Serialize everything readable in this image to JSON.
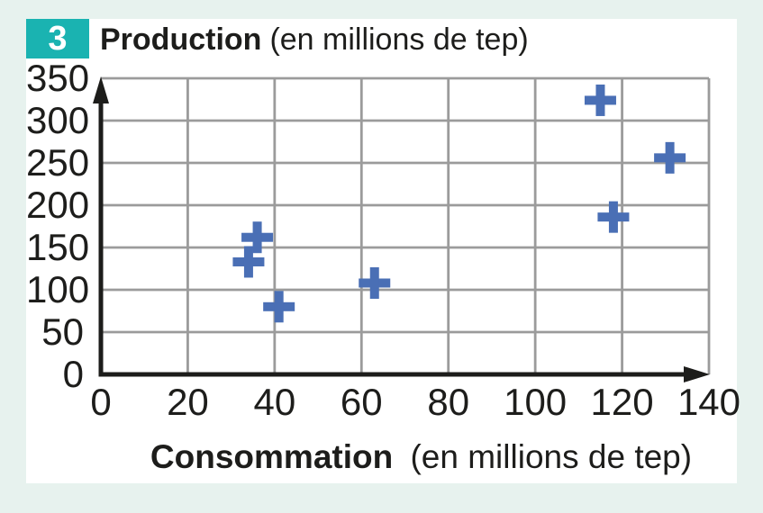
{
  "header": {
    "badge": "3",
    "title_bold": "Production",
    "title_rest": "(en millions de tep)"
  },
  "x_axis": {
    "label_bold": "Consommation",
    "label_rest": "(en millions de tep)"
  },
  "colors": {
    "accent_teal": "#1ab3b1",
    "marker_blue": "#4a6fb5",
    "grid_gray": "#9b9b9b",
    "axis_black": "#1d1d1b",
    "page_background": "#e7f2ee",
    "card_background": "#ffffff"
  },
  "chart_data": {
    "type": "scatter",
    "title": "Production (en millions de tep)",
    "xlabel": "Consommation (en millions de tep)",
    "ylabel": "Production (en millions de tep)",
    "xlim": [
      0,
      140
    ],
    "ylim": [
      0,
      350
    ],
    "x_ticks": [
      0,
      20,
      40,
      60,
      80,
      100,
      120,
      140
    ],
    "y_ticks": [
      0,
      50,
      100,
      150,
      200,
      250,
      300,
      350
    ],
    "grid": true,
    "legend": false,
    "marker": "plus",
    "points": [
      {
        "x": 34,
        "y": 133
      },
      {
        "x": 36,
        "y": 162
      },
      {
        "x": 41,
        "y": 80
      },
      {
        "x": 63,
        "y": 108
      },
      {
        "x": 115,
        "y": 324
      },
      {
        "x": 118,
        "y": 186
      },
      {
        "x": 131,
        "y": 256
      }
    ]
  }
}
